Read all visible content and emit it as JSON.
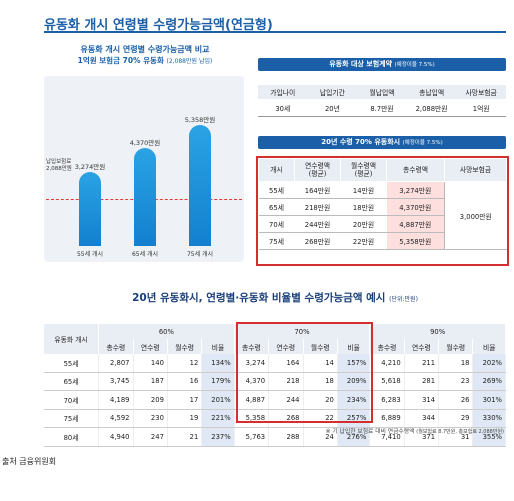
{
  "title": "유동화 개시 연령별 수령가능금액(연금형)",
  "chart": {
    "title": "유동화 개시 연령별 수령가능금액 비교",
    "subtitle": "1억원 보험금 70% 유동화",
    "subtitle_note": "(2,088만원 납입)",
    "ref_label_line1": "납입보험료",
    "ref_label_line2": "2,088만원",
    "bars": [
      {
        "age": "55세 개시",
        "value_label": "3,274만원"
      },
      {
        "age": "65세 개시",
        "value_label": "4,370만원"
      },
      {
        "age": "75세 개시",
        "value_label": "5,358만원"
      }
    ]
  },
  "chart_data": {
    "type": "bar",
    "categories": [
      "55세 개시",
      "65세 개시",
      "75세 개시"
    ],
    "values": [
      3274,
      4370,
      5358
    ],
    "reference_line": 2088,
    "title": "유동화 개시 연령별 수령가능금액 비교",
    "ylim": [
      0,
      6000
    ]
  },
  "contract": {
    "heading": "유동화 대상 보험계약",
    "heading_note": "(예정이율 7.5%)",
    "headers": [
      "가입나이",
      "납입기간",
      "월납입액",
      "총납입액",
      "사망보험금"
    ],
    "values": [
      "30세",
      "20년",
      "8.7만원",
      "2,088만원",
      "1억원"
    ]
  },
  "liquidation": {
    "heading": "20년 수령 70% 유동화시",
    "heading_note": "(예정이율 7.5%)",
    "headers": [
      "개시",
      "연수령액\n(평균)",
      "월수령액\n(평균)",
      "총수령액",
      "사망보험금"
    ],
    "rows": [
      [
        "55세",
        "164만원",
        "14만원",
        "3,274만원"
      ],
      [
        "65세",
        "218만원",
        "18만원",
        "4,370만원"
      ],
      [
        "70세",
        "244만원",
        "20만원",
        "4,887만원"
      ],
      [
        "75세",
        "268만원",
        "22만원",
        "5,358만원"
      ]
    ],
    "death_benefit": "3,000만원"
  },
  "ratio_table": {
    "title": "20년 유동화시, 연령별·유동화 비율별 수령가능금액 예시",
    "unit": "(단위:만원)",
    "row_header": "유동화 개시",
    "groups": [
      "60%",
      "70%",
      "90%"
    ],
    "sub_headers": [
      "총수령",
      "연수령",
      "월수령",
      "비율"
    ],
    "rows": [
      {
        "age": "55세",
        "g60": [
          "2,807",
          "140",
          "12",
          "134%"
        ],
        "g70": [
          "3,274",
          "164",
          "14",
          "157%"
        ],
        "g90": [
          "4,210",
          "211",
          "18",
          "202%"
        ]
      },
      {
        "age": "65세",
        "g60": [
          "3,745",
          "187",
          "16",
          "179%"
        ],
        "g70": [
          "4,370",
          "218",
          "18",
          "209%"
        ],
        "g90": [
          "5,618",
          "281",
          "23",
          "269%"
        ]
      },
      {
        "age": "70세",
        "g60": [
          "4,189",
          "209",
          "17",
          "201%"
        ],
        "g70": [
          "4,887",
          "244",
          "20",
          "234%"
        ],
        "g90": [
          "6,283",
          "314",
          "26",
          "301%"
        ]
      },
      {
        "age": "75세",
        "g60": [
          "4,592",
          "230",
          "19",
          "221%"
        ],
        "g70": [
          "5,358",
          "268",
          "22",
          "257%"
        ],
        "g90": [
          "6,889",
          "344",
          "29",
          "330%"
        ]
      },
      {
        "age": "80세",
        "g60": [
          "4,940",
          "247",
          "21",
          "237%"
        ],
        "g70": [
          "5,763",
          "288",
          "24",
          "276%"
        ],
        "g90": [
          "7,410",
          "371",
          "31",
          "355%"
        ]
      }
    ],
    "footnote": "※ 기 납입한 보험료 대비 연금수령액",
    "footnote_small": "(월보험료 8.7만원, 총보험료 2,088만원)"
  },
  "source": "출처 금융위원회"
}
